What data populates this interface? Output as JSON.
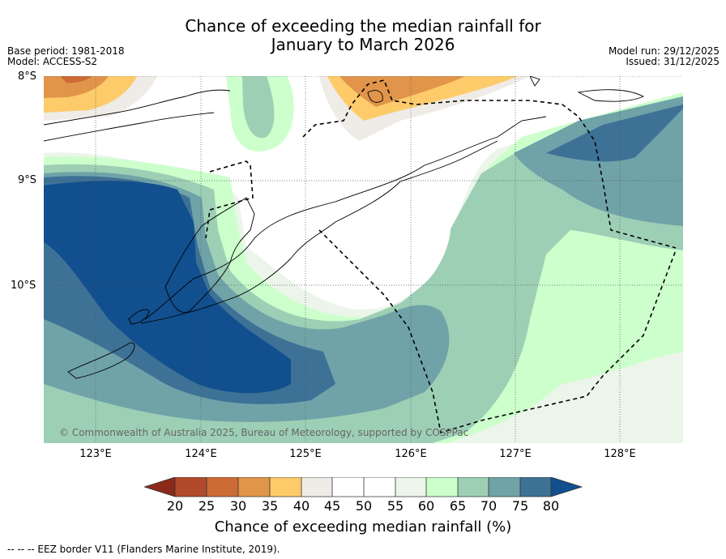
{
  "title_line1": "Chance of exceeding the median rainfall for",
  "title_line2": "January to March 2026",
  "base_period": "Base period: 1981-2018",
  "model": "Model: ACCESS-S2",
  "model_run": "Model run: 29/12/2025",
  "issued": "Issued: 31/12/2025",
  "lat_labels": [
    "8°S",
    "9°S",
    "10°S"
  ],
  "lon_labels": [
    "123°E",
    "124°E",
    "125°E",
    "126°E",
    "127°E",
    "128°E"
  ],
  "copyright": "© Commonwealth of Australia 2025, Bureau of Meteorology, supported by COSPPac",
  "colorbar": {
    "ticks": [
      "20",
      "25",
      "30",
      "35",
      "40",
      "45",
      "50",
      "55",
      "60",
      "65",
      "70",
      "75",
      "80"
    ],
    "label": "Chance of exceeding median rainfall (%)",
    "colors": {
      "below20": "#8b2a1a",
      "c20_25": "#b14a2b",
      "c25_30": "#cc6b35",
      "c30_35": "#e0954a",
      "c35_40": "#fdcb6a",
      "c40_45": "#efebe6",
      "c45_50": "#ffffff",
      "c50_55": "#ffffff",
      "c55_60": "#ecf5ea",
      "c60_65": "#ccffcc",
      "c65_70": "#9dcfb5",
      "c70_75": "#6fa3a8",
      "c75_80": "#3e7196",
      "above80": "#114f8e"
    }
  },
  "footnote": "-- -- -- EEZ border V11 (Flanders Marine Institute, 2019)."
}
